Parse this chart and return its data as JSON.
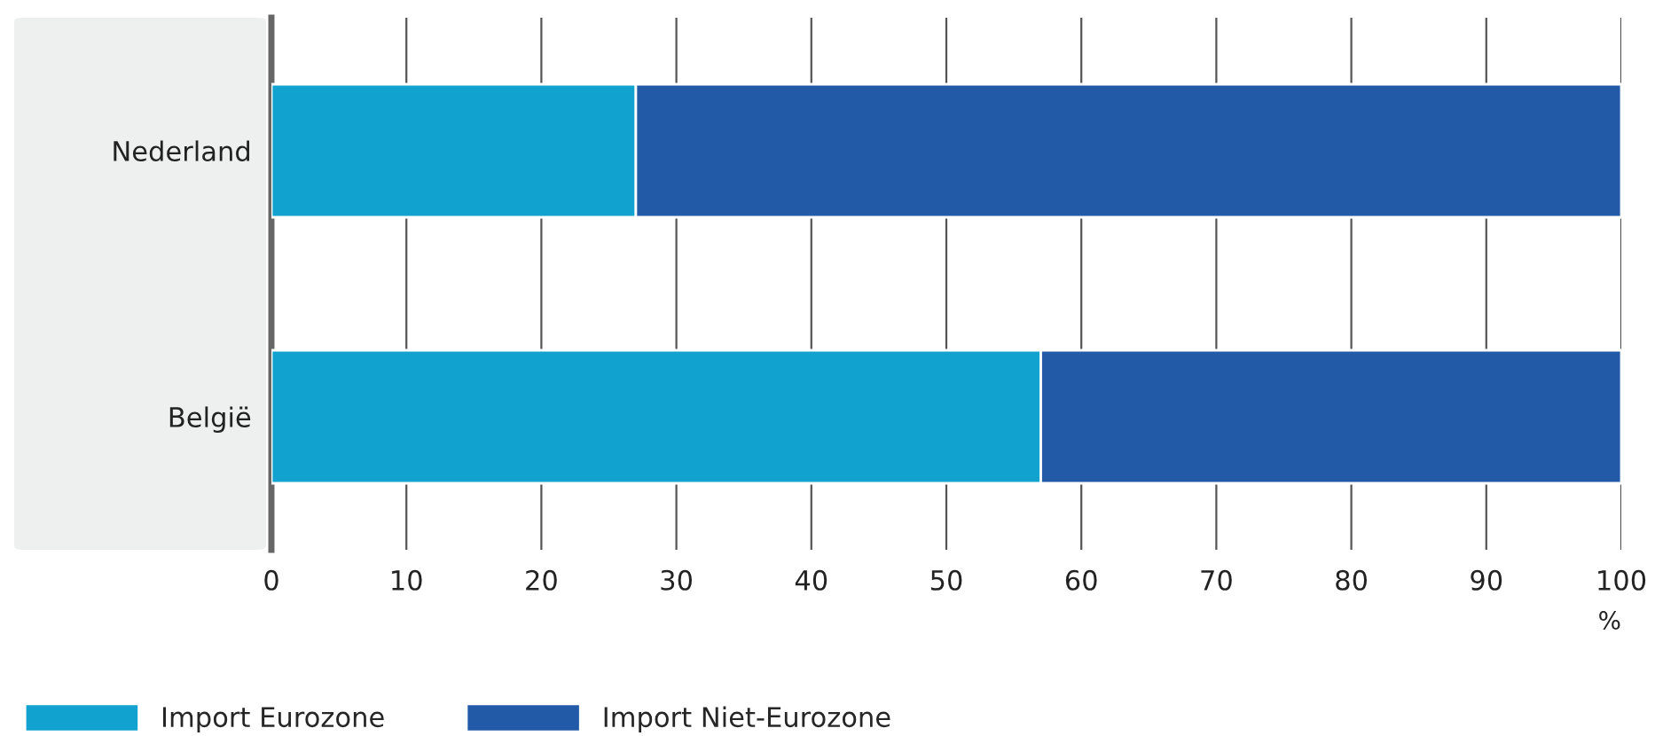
{
  "chart_data": {
    "type": "bar",
    "orientation": "horizontal",
    "stacked": true,
    "categories": [
      "Nederland",
      "België"
    ],
    "series": [
      {
        "name": "Import Eurozone",
        "color": "#11a2cf",
        "values": [
          27,
          57
        ]
      },
      {
        "name": "Import Niet-Eurozone",
        "color": "#225aa8",
        "values": [
          73,
          43
        ]
      }
    ],
    "xlim": [
      0,
      100
    ],
    "xticks": [
      0,
      10,
      20,
      30,
      40,
      50,
      60,
      70,
      80,
      90,
      100
    ],
    "xlabel": "%",
    "grid": "x",
    "legend": "bottom"
  }
}
